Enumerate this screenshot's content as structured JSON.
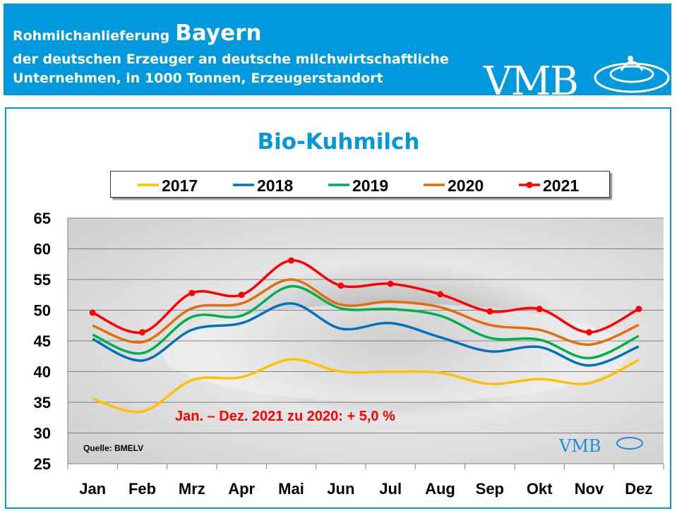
{
  "header": {
    "line1": "Rohmilchanlieferung",
    "region": "Bayern",
    "line2": "der deutschen Erzeuger an deutsche milchwirtschaftliche",
    "line3": "Unternehmen, in 1000 Tonnen, Erzeugerstandort",
    "logo": "VMB"
  },
  "chart_data": {
    "type": "line",
    "title": "Bio-Kuhmilch",
    "categories": [
      "Jan",
      "Feb",
      "Mrz",
      "Apr",
      "Mai",
      "Jun",
      "Jul",
      "Aug",
      "Sep",
      "Okt",
      "Nov",
      "Dez"
    ],
    "ylim": [
      25,
      65
    ],
    "yticks": [
      25,
      30,
      35,
      40,
      45,
      50,
      55,
      60,
      65
    ],
    "grid": true,
    "legend": "top",
    "series": [
      {
        "name": "2017",
        "color": "#ffc000",
        "values": [
          35.6,
          33.5,
          38.6,
          39.1,
          42.0,
          40.0,
          40.0,
          39.8,
          38.0,
          38.8,
          38.1,
          41.9
        ]
      },
      {
        "name": "2018",
        "color": "#0070c0",
        "values": [
          45.3,
          41.8,
          46.8,
          47.9,
          51.1,
          47.0,
          47.9,
          45.6,
          43.3,
          44.0,
          41.0,
          44.1
        ]
      },
      {
        "name": "2019",
        "color": "#00b050",
        "values": [
          46.0,
          43.0,
          48.9,
          49.1,
          53.9,
          50.3,
          50.2,
          49.1,
          45.5,
          45.2,
          42.2,
          45.8
        ]
      },
      {
        "name": "2020",
        "color": "#e46c0a",
        "values": [
          47.5,
          44.8,
          50.3,
          51.1,
          55.0,
          50.9,
          51.4,
          50.5,
          47.6,
          46.8,
          44.4,
          47.6
        ]
      },
      {
        "name": "2021",
        "color": "#ff0000",
        "markers": true,
        "values": [
          49.6,
          46.4,
          52.8,
          52.5,
          58.1,
          54.0,
          54.3,
          52.6,
          49.8,
          50.2,
          46.4,
          50.2
        ]
      }
    ],
    "annotation": "Jan. – Dez. 2021 zu 2020: + 5,0 %",
    "source": "Quelle:  BMELV",
    "watermark": "VMB"
  }
}
